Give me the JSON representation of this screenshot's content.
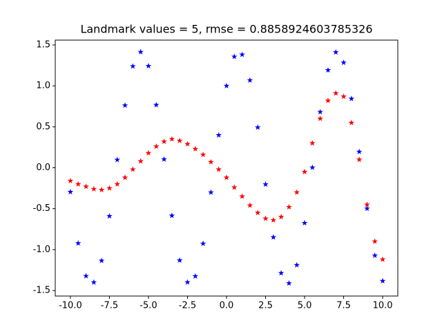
{
  "chart_data": {
    "type": "scatter",
    "title": "Landmark values = 5, rmse = 0.8858924603785326",
    "x": [
      -10,
      -9.5,
      -9,
      -8.5,
      -8,
      -7.5,
      -7,
      -6.5,
      -6,
      -5.5,
      -5,
      -4.5,
      -4,
      -3.5,
      -3,
      -2.5,
      -2,
      -1.5,
      -1,
      -0.5,
      0,
      0.5,
      1,
      1.5,
      2,
      2.5,
      3,
      3.5,
      4,
      4.5,
      5,
      5.5,
      6,
      6.5,
      7,
      7.5,
      8,
      8.5,
      9,
      9.5,
      10
    ],
    "series": [
      {
        "color": "#0000ff",
        "values": [
          -0.295,
          -0.922,
          -1.323,
          -1.4,
          -1.135,
          -0.591,
          0.097,
          0.762,
          1.239,
          1.414,
          1.243,
          0.767,
          0.103,
          -0.585,
          -1.131,
          -1.399,
          -1.325,
          -0.927,
          -0.301,
          0.398,
          1,
          1.357,
          1.382,
          1.068,
          0.493,
          -0.203,
          -0.849,
          -1.287,
          -1.411,
          -1.189,
          -0.675,
          0.003,
          0.681,
          1.192,
          1.411,
          1.285,
          0.843,
          0.196,
          -0.499,
          -1.072,
          -1.383
        ]
      },
      {
        "color": "#ff0000",
        "values": [
          -0.16,
          -0.2,
          -0.23,
          -0.26,
          -0.27,
          -0.25,
          -0.2,
          -0.12,
          -0.02,
          0.08,
          0.18,
          0.26,
          0.32,
          0.35,
          0.33,
          0.29,
          0.23,
          0.16,
          0.07,
          -0.02,
          -0.12,
          -0.24,
          -0.35,
          -0.46,
          -0.55,
          -0.62,
          -0.64,
          -0.6,
          -0.48,
          -0.3,
          -0.05,
          0.3,
          0.6,
          0.82,
          0.91,
          0.87,
          0.55,
          0.1,
          -0.45,
          -0.9,
          -1.12
        ]
      }
    ],
    "xlim": [
      -10.97,
      10.97
    ],
    "ylim": [
      -1.567,
      1.559
    ],
    "xticks": [
      {
        "value": -10,
        "label": "-10.0"
      },
      -7.5,
      {
        "value": -5,
        "label": "-5.0"
      },
      -2.5,
      {
        "value": 0,
        "label": "0.0"
      },
      2.5,
      {
        "value": 5,
        "label": "5.0"
      },
      7.5,
      {
        "value": 10,
        "label": "10.0"
      }
    ],
    "yticks": [
      -1.5,
      {
        "value": -1,
        "label": "-1.0"
      },
      -0.5,
      {
        "value": 0,
        "label": "0.0"
      },
      0.5,
      {
        "value": 1,
        "label": "1.0"
      },
      1.5
    ]
  }
}
